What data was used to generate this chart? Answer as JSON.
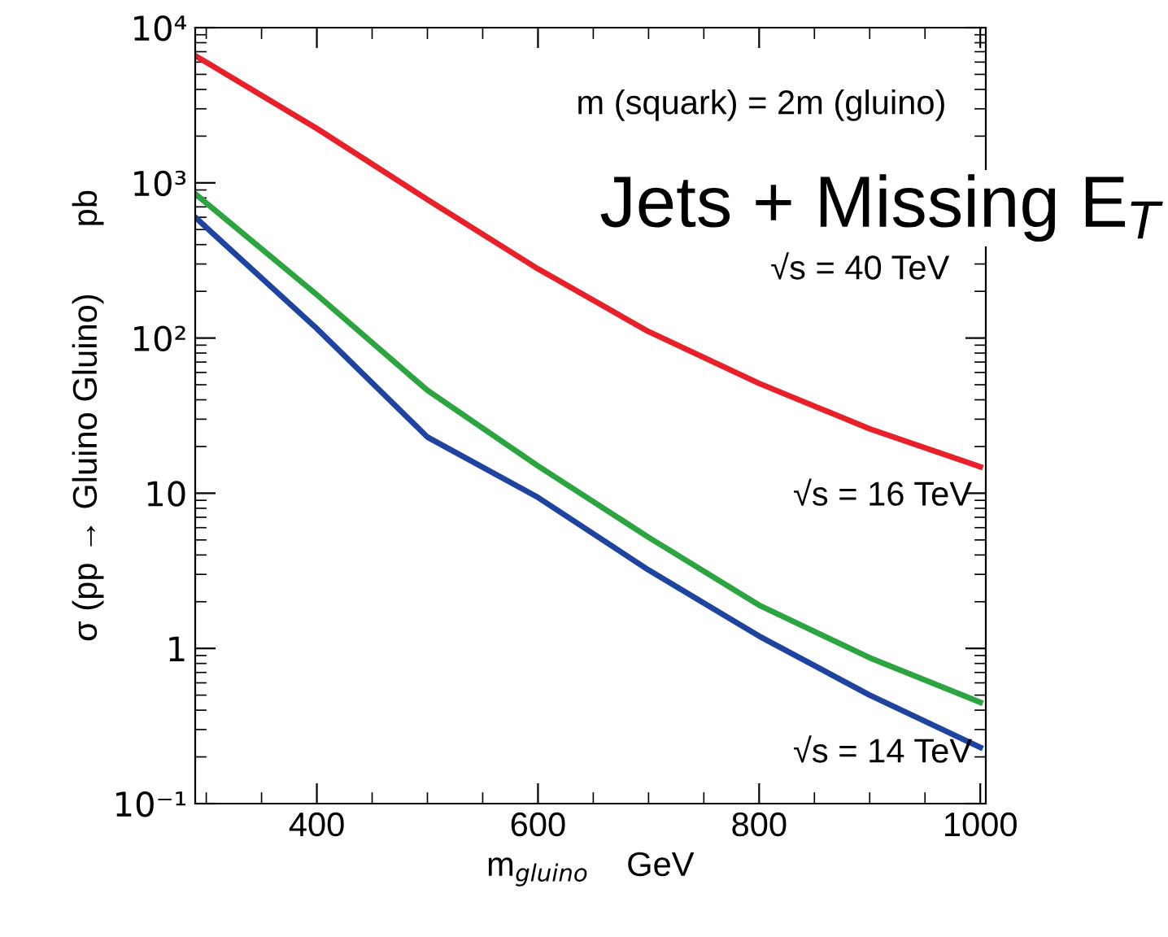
{
  "chart_data": {
    "type": "line",
    "xlabel": "m$_{gluino}$    GeV",
    "ylabel": "σ (pp → Gluino Gluino)       pb",
    "x": [
      290,
      400,
      500,
      600,
      700,
      800,
      900,
      1000
    ],
    "series": [
      {
        "name": "√s = 40 TeV",
        "color": "#e8202a",
        "values": [
          6600,
          2240,
          780,
          279,
          110,
          51,
          26,
          14.8
        ]
      },
      {
        "name": "√s = 16 TeV",
        "color": "#2ca540",
        "values": [
          850,
          190,
          46,
          15,
          5.2,
          1.9,
          0.87,
          0.45
        ]
      },
      {
        "name": "√s = 14 TeV",
        "color": "#1f44a0",
        "values": [
          600,
          115,
          23,
          9.4,
          3.2,
          1.2,
          0.5,
          0.23
        ]
      }
    ],
    "annotations": [
      "m (squark) = 2m (gluino)",
      "Jets + Missing E$_{T}$"
    ],
    "log": "y",
    "xlim": [
      290,
      1005
    ],
    "ylim": [
      0.1,
      10000
    ],
    "xticks": [
      400,
      600,
      800,
      1000
    ],
    "yticks": [
      {
        "value": 0.1,
        "label": "10⁻¹"
      },
      1,
      10,
      {
        "value": 100,
        "label": "10²"
      },
      {
        "value": 1000,
        "label": "10³"
      },
      {
        "value": 10000,
        "label": "10⁴"
      }
    ],
    "grid": false,
    "legend": false,
    "line_style": "solid",
    "marker": "none"
  }
}
